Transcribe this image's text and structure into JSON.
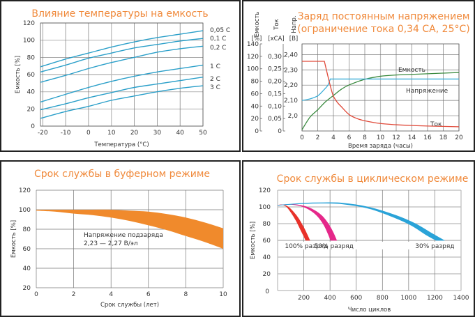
{
  "chart_data": [
    {
      "id": "temp",
      "type": "line",
      "title": "Влияние температуры на емкость",
      "xlabel": "Температура (°C)",
      "ylabel": "Емкость [%]",
      "xlim": [
        -21,
        50
      ],
      "ylim": [
        0,
        120
      ],
      "xticks": [
        -20,
        -10,
        0,
        10,
        20,
        30,
        40,
        50
      ],
      "xtick_labels": [
        "-20",
        "-10",
        "0",
        "10",
        "20",
        "30",
        "40",
        "50"
      ],
      "yticks": [
        0,
        20,
        40,
        60,
        80,
        100,
        120
      ],
      "ytick_labels": [
        "0",
        "20",
        "40",
        "60",
        "80",
        "100",
        "120"
      ],
      "grid": true,
      "color": "#2a9fc9",
      "x": [
        -21,
        -10,
        0,
        10,
        20,
        30,
        40,
        50
      ],
      "series": [
        {
          "name": "0,05 C",
          "values": [
            69,
            78,
            85,
            92,
            98,
            103,
            107,
            111
          ]
        },
        {
          "name": "0,1 C",
          "values": [
            63,
            71,
            79,
            85,
            91,
            95,
            99,
            102
          ]
        },
        {
          "name": "0,2 C",
          "values": [
            51,
            59,
            67,
            74,
            80,
            86,
            90,
            93
          ]
        },
        {
          "name": "1 C",
          "values": [
            28,
            37,
            45,
            52,
            58,
            63,
            67,
            71
          ]
        },
        {
          "name": "2 C",
          "values": [
            19,
            26,
            33,
            39,
            45,
            49,
            53,
            57
          ]
        },
        {
          "name": "3 C",
          "values": [
            9,
            17,
            23,
            30,
            35,
            40,
            44,
            47
          ]
        }
      ]
    },
    {
      "id": "charge",
      "type": "line",
      "title": [
        "Заряд постоянным напряжением",
        "(ограничение тока 0,34 CA, 25°C)"
      ],
      "xlabel": "Время заряда (часы)",
      "xlim": [
        0,
        20
      ],
      "xticks": [
        0,
        2,
        4,
        6,
        8,
        10,
        12,
        14,
        16,
        18,
        20
      ],
      "xtick_labels": [
        "0",
        "2",
        "4",
        "6",
        "8",
        "10",
        "12",
        "14",
        "16",
        "18",
        "20"
      ],
      "grid": true,
      "axes": [
        {
          "name": "Емкость",
          "unit": "[%]",
          "ylim": [
            0,
            140
          ],
          "ticks": [
            0,
            20,
            40,
            60,
            80,
            100,
            120,
            140
          ],
          "tick_labels": [
            "0",
            "20",
            "40",
            "60",
            "80",
            "100",
            "120",
            "140"
          ]
        },
        {
          "name": "Ток",
          "unit": "[xCA]",
          "ylim": [
            0,
            0.35
          ],
          "ticks": [
            0,
            0.05,
            0.1,
            0.15,
            0.2,
            0.25,
            0.3
          ],
          "tick_labels": [
            "0",
            "0,05",
            "0,10",
            "0,15",
            "0,20",
            "0,25",
            "0,30"
          ]
        },
        {
          "name": "Напр.",
          "unit": "[В]",
          "ylim": [
            1.9,
            2.47
          ],
          "ticks": [
            2.0,
            2.1,
            2.2,
            2.3,
            2.4
          ],
          "tick_labels": [
            "2,0",
            "2,10",
            "2,20",
            "2,30",
            "2,40"
          ]
        }
      ],
      "series": [
        {
          "name": "Емкость",
          "axis": 0,
          "color": "#3a8a3f",
          "x": [
            0,
            1,
            2,
            3,
            4,
            5,
            6,
            8,
            10,
            12,
            14,
            16,
            20
          ],
          "values": [
            2,
            22,
            34,
            47,
            57,
            67,
            74,
            83,
            88,
            90,
            91,
            92,
            94
          ]
        },
        {
          "name": "Напряжение",
          "axis": 2,
          "color": "#3aaed8",
          "x": [
            0,
            1,
            2,
            2.8,
            3.3,
            3.6,
            20
          ],
          "values": [
            2.1,
            2.11,
            2.13,
            2.17,
            2.2,
            2.24,
            2.24
          ]
        },
        {
          "name": "Ток",
          "axis": 1,
          "color": "#e04a3a",
          "x": [
            0,
            2.85,
            3.3,
            3.7,
            4,
            4.5,
            5,
            6,
            7,
            8,
            10,
            12,
            14,
            16,
            20
          ],
          "values": [
            0.28,
            0.28,
            0.22,
            0.17,
            0.14,
            0.115,
            0.098,
            0.066,
            0.05,
            0.041,
            0.03,
            0.025,
            0.022,
            0.02,
            0.017
          ]
        }
      ],
      "labels": [
        "Емкость",
        "Напряжение",
        "Ток"
      ]
    },
    {
      "id": "float",
      "type": "area",
      "title": "Срок службы в буферном режиме",
      "xlabel": "Срок службы (лет)",
      "ylabel": "Емкость [%]",
      "xlim": [
        0,
        10
      ],
      "ylim": [
        20,
        120
      ],
      "xticks": [
        0,
        2,
        4,
        6,
        8,
        10
      ],
      "xtick_labels": [
        "0",
        "2",
        "4",
        "6",
        "8",
        "10"
      ],
      "yticks": [
        20,
        40,
        60,
        80,
        100,
        120
      ],
      "ytick_labels": [
        "20",
        "40",
        "60",
        "80",
        "100",
        "120"
      ],
      "grid": true,
      "color": "#f08a2c",
      "x": [
        0,
        1,
        2,
        3,
        4,
        5,
        6,
        7,
        8,
        9,
        10
      ],
      "upper": [
        100,
        100,
        100,
        100,
        100,
        99,
        98,
        95.5,
        92,
        87,
        81
      ],
      "lower": [
        99,
        98,
        96,
        94.5,
        92,
        88.5,
        84,
        79,
        73,
        67,
        60
      ],
      "annotation": [
        "Напряжение подзаряда",
        "2,23 — 2,27 В/эл"
      ]
    },
    {
      "id": "cycle",
      "type": "area",
      "title": "Срок службы в циклическом режиме",
      "xlabel": "Число циклов",
      "ylabel": "Емкость [%]",
      "xlim": [
        0,
        1400
      ],
      "ylim": [
        0,
        120
      ],
      "xticks": [
        0,
        200,
        400,
        600,
        800,
        1000,
        1200,
        1400
      ],
      "xtick_labels": [
        "0",
        "200",
        "400",
        "600",
        "800",
        "1000",
        "1200",
        "1400"
      ],
      "yticks": [
        20,
        40,
        60,
        80,
        100,
        120
      ],
      "ytick_labels": [
        "20",
        "40",
        "60",
        "80",
        "100",
        "120"
      ],
      "grid": true,
      "series": [
        {
          "name": "100% разряд",
          "color": "#e8322a",
          "x_upper": [
            0,
            40,
            80,
            120,
            160,
            200,
            225,
            245
          ],
          "y_upper": [
            102,
            102.5,
            100,
            94,
            86,
            75,
            67,
            60
          ],
          "x_lower": [
            0,
            40,
            70,
            100,
            140,
            175,
            200,
            215
          ],
          "y_lower": [
            102,
            102.5,
            100,
            94,
            84,
            73,
            65,
            60
          ]
        },
        {
          "name": "50% разряд",
          "color": "#e5288a",
          "x_upper": [
            0,
            100,
            200,
            280,
            340,
            390,
            425,
            450
          ],
          "y_upper": [
            102,
            103,
            101,
            96,
            89,
            79,
            69,
            60
          ],
          "x_lower": [
            0,
            100,
            190,
            260,
            310,
            355,
            385,
            405
          ],
          "y_lower": [
            102,
            103,
            100.5,
            95,
            88,
            78,
            68,
            60
          ]
        },
        {
          "name": "30% разряд",
          "color": "#2aa3d8",
          "x_upper": [
            0,
            200,
            350,
            500,
            700,
            900,
            1050,
            1180,
            1270
          ],
          "y_upper": [
            102,
            104.5,
            105,
            104.5,
            99.5,
            90,
            80,
            68,
            60
          ],
          "x_lower": [
            0,
            200,
            350,
            500,
            700,
            880,
            1020,
            1130,
            1210
          ],
          "y_lower": [
            102,
            104,
            104.5,
            103.5,
            98,
            88,
            78,
            67,
            60
          ]
        }
      ],
      "labels": [
        "100% разряд",
        "50% разряд",
        "30% разряд"
      ]
    }
  ]
}
